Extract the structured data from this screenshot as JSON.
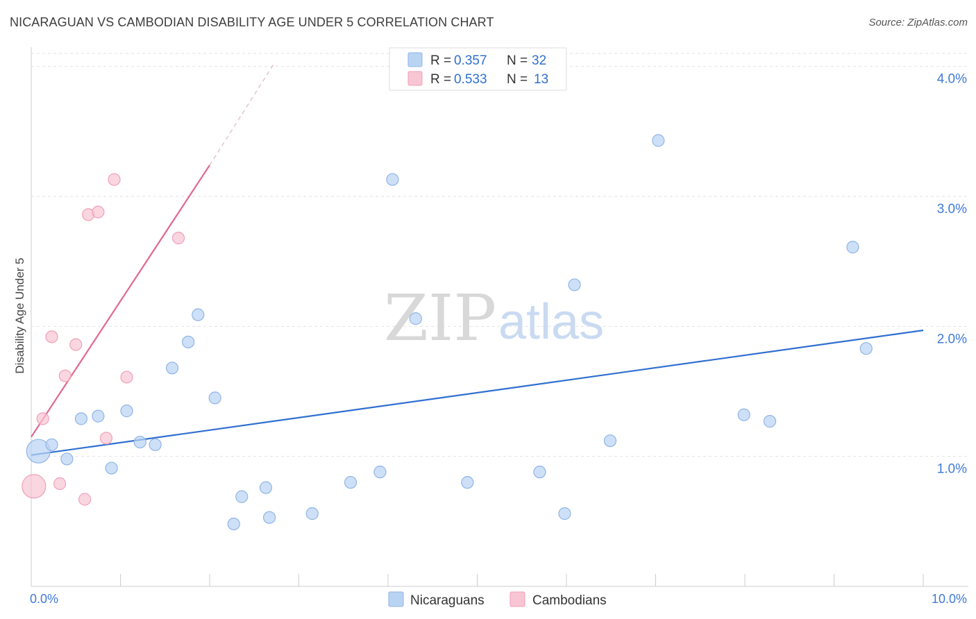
{
  "title": "NICARAGUAN VS CAMBODIAN DISABILITY AGE UNDER 5 CORRELATION CHART",
  "source": "Source: ZipAtlas.com",
  "watermark": {
    "part1": "ZIP",
    "part2": "atlas"
  },
  "colors": {
    "nicaraguans_fill": "#b9d3f3",
    "nicaraguans_stroke": "#8fb4e6",
    "nicaraguans_line": "#2f6fd0",
    "cambodians_fill": "#f8c5d4",
    "cambodians_stroke": "#eea0b7",
    "cambodians_line": "#e0678f",
    "tick_text": "#3f7ad6"
  },
  "legend": {
    "r_label": "R =",
    "n_label": "N =",
    "rows": [
      {
        "series": "Nicaraguans",
        "r": "0.357",
        "n": "32"
      },
      {
        "series": "Cambodians",
        "r": "0.533",
        "n": "13"
      }
    ]
  },
  "bottom_legend": [
    "Nicaraguans",
    "Cambodians"
  ],
  "chart_data": {
    "type": "scatter",
    "title": "NICARAGUAN VS CAMBODIAN DISABILITY AGE UNDER 5 CORRELATION CHART",
    "xlabel": "",
    "ylabel": "Disability Age Under 5",
    "xlim": [
      0,
      10
    ],
    "ylim": [
      0,
      4.1
    ],
    "x_tick_labels": [
      "0.0%",
      "10.0%"
    ],
    "y_ticks": [
      1,
      2,
      3,
      4
    ],
    "y_tick_labels": [
      "1.0%",
      "2.0%",
      "3.0%",
      "4.0%"
    ],
    "grid": true,
    "legend_position": "top-center",
    "series": [
      {
        "name": "Nicaraguans",
        "r": 0.357,
        "n": 32,
        "points": [
          {
            "x": 0.08,
            "y": 1.04,
            "size": "large"
          },
          {
            "x": 0.23,
            "y": 1.09
          },
          {
            "x": 0.4,
            "y": 0.98
          },
          {
            "x": 0.56,
            "y": 1.29
          },
          {
            "x": 0.75,
            "y": 1.31
          },
          {
            "x": 0.9,
            "y": 0.91
          },
          {
            "x": 1.07,
            "y": 1.35
          },
          {
            "x": 1.22,
            "y": 1.11
          },
          {
            "x": 1.39,
            "y": 1.09
          },
          {
            "x": 1.58,
            "y": 1.68
          },
          {
            "x": 1.76,
            "y": 1.88
          },
          {
            "x": 1.87,
            "y": 2.09
          },
          {
            "x": 2.06,
            "y": 1.45
          },
          {
            "x": 2.27,
            "y": 0.48
          },
          {
            "x": 2.36,
            "y": 0.69
          },
          {
            "x": 2.63,
            "y": 0.76
          },
          {
            "x": 2.67,
            "y": 0.53
          },
          {
            "x": 3.15,
            "y": 0.56
          },
          {
            "x": 3.58,
            "y": 0.8
          },
          {
            "x": 3.91,
            "y": 0.88
          },
          {
            "x": 4.05,
            "y": 3.13
          },
          {
            "x": 4.31,
            "y": 2.06
          },
          {
            "x": 4.89,
            "y": 0.8
          },
          {
            "x": 5.7,
            "y": 0.88
          },
          {
            "x": 5.98,
            "y": 0.56
          },
          {
            "x": 6.09,
            "y": 2.32
          },
          {
            "x": 6.49,
            "y": 1.12
          },
          {
            "x": 7.03,
            "y": 3.43
          },
          {
            "x": 7.99,
            "y": 1.32
          },
          {
            "x": 8.28,
            "y": 1.27
          },
          {
            "x": 9.21,
            "y": 2.61
          },
          {
            "x": 9.36,
            "y": 1.83
          }
        ],
        "trend": {
          "x": [
            0.0,
            10.0
          ],
          "y": [
            1.01,
            1.97
          ]
        }
      },
      {
        "name": "Cambodians",
        "r": 0.533,
        "n": 13,
        "points": [
          {
            "x": 0.03,
            "y": 0.77,
            "size": "large"
          },
          {
            "x": 0.13,
            "y": 1.29
          },
          {
            "x": 0.23,
            "y": 1.92
          },
          {
            "x": 0.32,
            "y": 0.79
          },
          {
            "x": 0.38,
            "y": 1.62
          },
          {
            "x": 0.5,
            "y": 1.86
          },
          {
            "x": 0.6,
            "y": 0.67
          },
          {
            "x": 0.64,
            "y": 2.86
          },
          {
            "x": 0.75,
            "y": 2.88
          },
          {
            "x": 0.84,
            "y": 1.14
          },
          {
            "x": 0.93,
            "y": 3.13
          },
          {
            "x": 1.07,
            "y": 1.61
          },
          {
            "x": 1.65,
            "y": 2.68
          }
        ],
        "trend": {
          "x": [
            0.0,
            2.0
          ],
          "y": [
            1.15,
            3.24
          ]
        },
        "trend_extension": {
          "x": [
            2.0,
            2.72
          ],
          "y": [
            3.24,
            4.02
          ]
        }
      }
    ]
  }
}
